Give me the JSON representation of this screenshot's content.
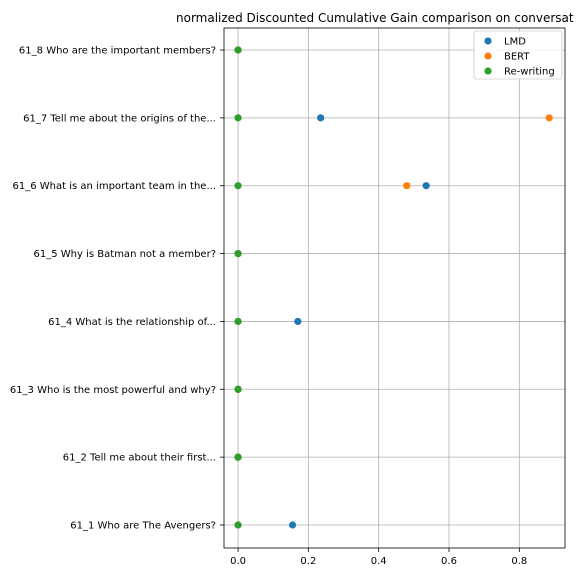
{
  "chart_data": {
    "type": "scatter",
    "title": "normalized Discounted Cumulative Gain comparison on conversat",
    "xlabel": "",
    "ylabel": "",
    "xlim": [
      -0.04,
      0.93
    ],
    "xticks": [
      0.0,
      0.2,
      0.4,
      0.6,
      0.8
    ],
    "xtick_labels": [
      "0.0",
      "0.2",
      "0.4",
      "0.6",
      "0.8"
    ],
    "grid": true,
    "legend_position": "top-right",
    "categories": [
      "61_1 Who are The Avengers?",
      "61_2 Tell me about their first...",
      "61_3 Who is the most powerful and why?",
      "61_4 What is the relationship of...",
      "61_5 Why is Batman not a member?",
      "61_6 What is an important team in the...",
      "61_7 Tell me about the origins of the...",
      "61_8 Who are the important members?"
    ],
    "series": [
      {
        "name": "LMD",
        "color": "#1f77b4",
        "values": [
          0.155,
          0.0,
          0.0,
          0.17,
          0.0,
          0.535,
          0.235,
          0.0
        ]
      },
      {
        "name": "BERT",
        "color": "#ff7f0e",
        "values": [
          0.0,
          0.0,
          0.0,
          0.0,
          0.0,
          0.48,
          0.885,
          0.0
        ]
      },
      {
        "name": "Re-writing",
        "color": "#2ca02c",
        "values": [
          0.0,
          0.0,
          0.0,
          0.0,
          0.0,
          0.0,
          0.0,
          0.0
        ]
      }
    ]
  }
}
